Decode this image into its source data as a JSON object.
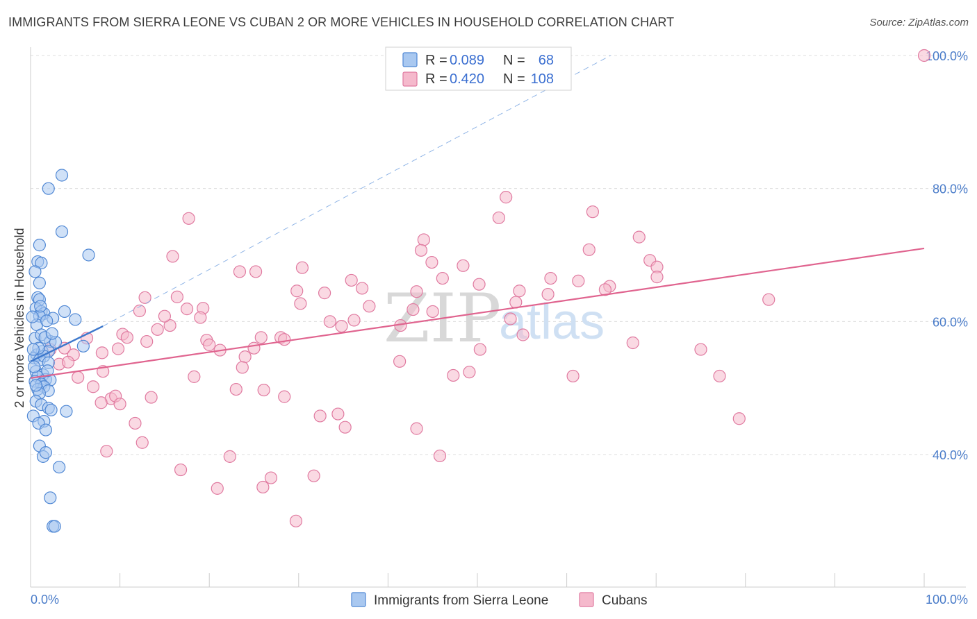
{
  "title": "IMMIGRANTS FROM SIERRA LEONE VS CUBAN 2 OR MORE VEHICLES IN HOUSEHOLD CORRELATION CHART",
  "source": "Source: ZipAtlas.com",
  "colors": {
    "blue_fill": "#a9c8f0",
    "blue_stroke": "#4f87d4",
    "blue_line": "#3d78cc",
    "pink_fill": "#f5b9cc",
    "pink_stroke": "#e07aa0",
    "pink_line": "#e0648f",
    "grid": "#dcdcdc",
    "tick_text": "#4a7cc9"
  },
  "legend": {
    "r_label": "R =",
    "n_label": "N =",
    "rows": [
      {
        "series": "Immigrants from Sierra Leone",
        "r": "0.089",
        "n": "68"
      },
      {
        "series": "Cubans",
        "r": "0.420",
        "n": "108"
      }
    ]
  },
  "watermark": {
    "part1": "ZIP",
    "part2": "atlas"
  },
  "chart_data": {
    "type": "scatter",
    "title": "IMMIGRANTS FROM SIERRA LEONE VS CUBAN 2 OR MORE VEHICLES IN HOUSEHOLD CORRELATION CHART",
    "xlabel": "",
    "ylabel": "2 or more Vehicles in Household",
    "xlim": [
      0,
      100
    ],
    "ylim": [
      20,
      102
    ],
    "x_tick_labels": [
      "0.0%",
      "100.0%"
    ],
    "y_ticks": [
      40,
      60,
      80,
      100
    ],
    "y_tick_labels": [
      "40.0%",
      "60.0%",
      "80.0%",
      "100.0%"
    ],
    "grid": true,
    "legend_position": "bottom",
    "series": [
      {
        "name": "Immigrants from Sierra Leone",
        "color": "#4f87d4",
        "trend": {
          "x": [
            0,
            8.1
          ],
          "y": [
            54.0,
            59.3
          ],
          "dashed_extension_to": [
            64.9,
            100
          ]
        },
        "points": [
          [
            3.5,
            82.0
          ],
          [
            2.0,
            80.0
          ],
          [
            3.5,
            73.5
          ],
          [
            6.5,
            70.0
          ],
          [
            1.0,
            71.5
          ],
          [
            0.8,
            69.0
          ],
          [
            1.2,
            68.8
          ],
          [
            0.5,
            67.5
          ],
          [
            1.0,
            65.8
          ],
          [
            0.8,
            63.6
          ],
          [
            1.0,
            63.3
          ],
          [
            0.6,
            62.0
          ],
          [
            1.2,
            61.5
          ],
          [
            1.5,
            61.2
          ],
          [
            3.8,
            61.5
          ],
          [
            1.0,
            60.8
          ],
          [
            2.5,
            60.5
          ],
          [
            5.0,
            60.3
          ],
          [
            0.7,
            59.5
          ],
          [
            1.8,
            60.1
          ],
          [
            0.5,
            57.5
          ],
          [
            1.2,
            58.0
          ],
          [
            2.2,
            57.0
          ],
          [
            2.8,
            56.9
          ],
          [
            5.9,
            56.3
          ],
          [
            0.7,
            55.0
          ],
          [
            1.3,
            55.5
          ],
          [
            2.0,
            55.5
          ],
          [
            0.4,
            54.5
          ],
          [
            1.0,
            54.2
          ],
          [
            1.5,
            54.8
          ],
          [
            2.0,
            53.8
          ],
          [
            0.6,
            52.5
          ],
          [
            1.4,
            52.0
          ],
          [
            0.8,
            51.7
          ],
          [
            1.7,
            51.3
          ],
          [
            2.2,
            51.2
          ],
          [
            0.5,
            51.0
          ],
          [
            1.2,
            50.6
          ],
          [
            1.5,
            50.2
          ],
          [
            0.8,
            49.8
          ],
          [
            2.0,
            49.6
          ],
          [
            1.0,
            49.2
          ],
          [
            0.6,
            48.0
          ],
          [
            1.2,
            47.5
          ],
          [
            2.0,
            47.0
          ],
          [
            2.3,
            46.7
          ],
          [
            4.0,
            46.5
          ],
          [
            0.3,
            45.8
          ],
          [
            1.5,
            45.0
          ],
          [
            0.9,
            44.7
          ],
          [
            1.7,
            43.7
          ],
          [
            1.0,
            41.3
          ],
          [
            1.4,
            39.7
          ],
          [
            1.7,
            40.3
          ],
          [
            3.2,
            38.1
          ],
          [
            2.2,
            33.5
          ],
          [
            2.5,
            29.2
          ],
          [
            2.7,
            29.2
          ],
          [
            0.4,
            53.2
          ],
          [
            0.9,
            56.0
          ],
          [
            1.6,
            57.6
          ],
          [
            0.3,
            55.8
          ],
          [
            2.4,
            58.2
          ],
          [
            0.6,
            50.4
          ],
          [
            1.1,
            62.3
          ],
          [
            0.2,
            60.7
          ],
          [
            1.9,
            52.6
          ]
        ]
      },
      {
        "name": "Cubans",
        "color": "#e07aa0",
        "trend": {
          "x": [
            0,
            100
          ],
          "y": [
            51.5,
            71.0
          ]
        },
        "points": [
          [
            100.0,
            100.0
          ],
          [
            53.2,
            78.7
          ],
          [
            52.4,
            75.6
          ],
          [
            17.7,
            75.5
          ],
          [
            62.9,
            76.5
          ],
          [
            68.1,
            72.7
          ],
          [
            44.0,
            72.3
          ],
          [
            43.7,
            70.7
          ],
          [
            62.5,
            70.8
          ],
          [
            15.9,
            69.8
          ],
          [
            69.3,
            69.2
          ],
          [
            70.1,
            68.2
          ],
          [
            44.9,
            68.9
          ],
          [
            30.4,
            68.1
          ],
          [
            23.4,
            67.5
          ],
          [
            25.2,
            67.5
          ],
          [
            46.1,
            66.5
          ],
          [
            58.2,
            66.5
          ],
          [
            61.3,
            66.1
          ],
          [
            50.2,
            65.6
          ],
          [
            35.9,
            66.2
          ],
          [
            64.8,
            65.3
          ],
          [
            70.1,
            66.7
          ],
          [
            37.1,
            65.0
          ],
          [
            29.8,
            64.6
          ],
          [
            64.3,
            64.8
          ],
          [
            54.7,
            64.6
          ],
          [
            43.2,
            64.5
          ],
          [
            32.9,
            64.3
          ],
          [
            82.6,
            63.3
          ],
          [
            16.4,
            63.7
          ],
          [
            12.8,
            63.6
          ],
          [
            54.3,
            62.9
          ],
          [
            37.9,
            62.3
          ],
          [
            17.5,
            61.9
          ],
          [
            19.3,
            62.0
          ],
          [
            12.2,
            61.6
          ],
          [
            45.0,
            61.5
          ],
          [
            19.0,
            60.6
          ],
          [
            33.5,
            60.0
          ],
          [
            53.7,
            60.4
          ],
          [
            41.4,
            59.4
          ],
          [
            34.8,
            59.3
          ],
          [
            15.6,
            59.4
          ],
          [
            14.2,
            58.8
          ],
          [
            10.3,
            58.1
          ],
          [
            55.1,
            58.0
          ],
          [
            10.8,
            57.6
          ],
          [
            25.8,
            57.6
          ],
          [
            28.0,
            57.6
          ],
          [
            28.4,
            57.3
          ],
          [
            13.0,
            57.0
          ],
          [
            19.7,
            57.2
          ],
          [
            6.3,
            57.5
          ],
          [
            3.8,
            56.0
          ],
          [
            25.0,
            56.0
          ],
          [
            20.0,
            56.5
          ],
          [
            21.2,
            55.7
          ],
          [
            67.4,
            56.8
          ],
          [
            50.3,
            55.8
          ],
          [
            75.0,
            55.8
          ],
          [
            2.2,
            55.8
          ],
          [
            4.8,
            55.0
          ],
          [
            8.0,
            55.3
          ],
          [
            24.0,
            54.7
          ],
          [
            41.3,
            54.0
          ],
          [
            3.2,
            53.6
          ],
          [
            4.2,
            53.9
          ],
          [
            23.7,
            53.1
          ],
          [
            8.1,
            52.5
          ],
          [
            18.3,
            51.7
          ],
          [
            5.3,
            51.6
          ],
          [
            49.1,
            52.4
          ],
          [
            60.7,
            51.8
          ],
          [
            77.1,
            51.8
          ],
          [
            47.3,
            51.9
          ],
          [
            7.0,
            50.2
          ],
          [
            23.0,
            49.8
          ],
          [
            26.1,
            49.7
          ],
          [
            13.5,
            48.6
          ],
          [
            9.0,
            48.4
          ],
          [
            9.5,
            48.8
          ],
          [
            7.9,
            47.8
          ],
          [
            28.4,
            48.7
          ],
          [
            10.0,
            47.6
          ],
          [
            34.4,
            46.1
          ],
          [
            79.3,
            45.4
          ],
          [
            32.4,
            45.8
          ],
          [
            11.7,
            44.7
          ],
          [
            43.2,
            43.9
          ],
          [
            12.5,
            41.8
          ],
          [
            8.5,
            40.5
          ],
          [
            22.3,
            39.7
          ],
          [
            45.8,
            39.8
          ],
          [
            16.8,
            37.7
          ],
          [
            26.9,
            36.5
          ],
          [
            31.7,
            36.8
          ],
          [
            26.0,
            35.1
          ],
          [
            20.9,
            34.9
          ],
          [
            29.7,
            30.0
          ],
          [
            35.2,
            44.1
          ],
          [
            42.8,
            61.8
          ],
          [
            36.2,
            60.2
          ],
          [
            57.9,
            64.1
          ],
          [
            48.4,
            68.4
          ],
          [
            30.2,
            62.7
          ],
          [
            15.0,
            60.8
          ],
          [
            9.8,
            55.9
          ]
        ]
      }
    ]
  }
}
